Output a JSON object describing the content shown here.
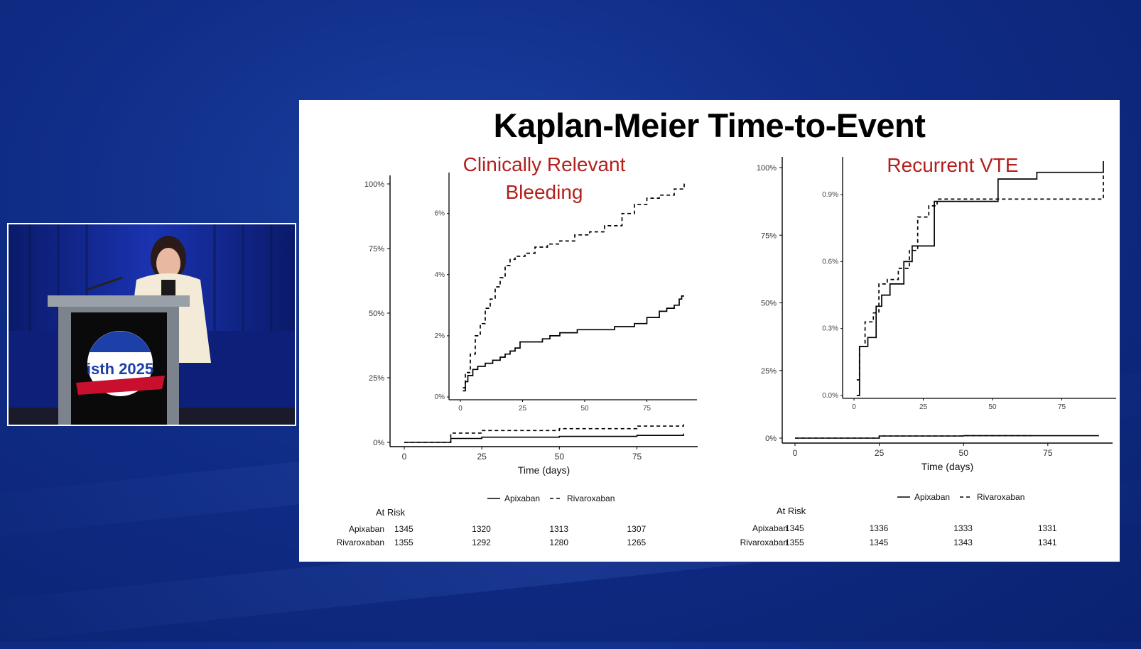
{
  "slide": {
    "title": "Kaplan-Meier Time-to-Event"
  },
  "video": {
    "podium_logo_text": "isth 2025"
  },
  "colors": {
    "background": "#0f2c86",
    "subtitle_red": "#b3201c",
    "line": "#000000"
  },
  "chart_data": [
    {
      "type": "line",
      "title": "Clinically Relevant Bleeding",
      "xlabel": "Time (days)",
      "ylabel": "",
      "xlim": [
        0,
        90
      ],
      "ylim": [
        0,
        100
      ],
      "x_ticks": [
        "0",
        "25",
        "50",
        "75"
      ],
      "y_ticks": [
        "0%",
        "25%",
        "50%",
        "75%",
        "100%"
      ],
      "legend_position": "bottom",
      "series": [
        {
          "name": "Apixaban",
          "style": "solid",
          "x": [
            0,
            15,
            25,
            50,
            75,
            90
          ],
          "values": [
            0.0,
            1.5,
            2.0,
            2.3,
            2.7,
            3.4
          ]
        },
        {
          "name": "Rivaroxaban",
          "style": "dashed",
          "x": [
            0,
            15,
            25,
            50,
            75,
            90
          ],
          "values": [
            0.0,
            3.6,
            4.6,
            5.3,
            6.3,
            7.0
          ]
        }
      ],
      "inset": {
        "xlim": [
          0,
          90
        ],
        "ylim": [
          0,
          7.2
        ],
        "x_ticks": [
          "0",
          "25",
          "50",
          "75"
        ],
        "y_ticks": [
          "0%",
          "2%",
          "4%",
          "6%"
        ],
        "series": [
          {
            "name": "Apixaban",
            "style": "solid",
            "x": [
              1,
              2,
              3,
              5,
              7,
              10,
              13,
              16,
              18,
              20,
              22,
              24,
              33,
              36,
              40,
              47,
              55,
              62,
              70,
              75,
              80,
              83,
              86,
              88,
              89,
              90
            ],
            "values": [
              0.2,
              0.5,
              0.7,
              0.9,
              1.0,
              1.1,
              1.2,
              1.3,
              1.4,
              1.5,
              1.6,
              1.8,
              1.9,
              2.0,
              2.1,
              2.2,
              2.2,
              2.3,
              2.4,
              2.6,
              2.8,
              2.9,
              3.0,
              3.2,
              3.3,
              3.3
            ]
          },
          {
            "name": "Rivaroxaban",
            "style": "dashed",
            "x": [
              1,
              2,
              4,
              6,
              8,
              10,
              12,
              14,
              16,
              18,
              20,
              22,
              24,
              26,
              30,
              35,
              40,
              46,
              52,
              58,
              65,
              70,
              75,
              80,
              86,
              90
            ],
            "values": [
              0.3,
              0.8,
              1.4,
              2.0,
              2.4,
              2.9,
              3.2,
              3.6,
              3.9,
              4.3,
              4.5,
              4.6,
              4.6,
              4.7,
              4.9,
              5.0,
              5.1,
              5.3,
              5.4,
              5.6,
              6.0,
              6.3,
              6.5,
              6.6,
              6.8,
              7.0
            ]
          }
        ]
      },
      "at_risk": {
        "label": "At Risk",
        "times": [
          0,
          25,
          50,
          75
        ],
        "rows": [
          {
            "name": "Apixaban",
            "values": [
              1345,
              1320,
              1313,
              1307
            ]
          },
          {
            "name": "Rivaroxaban",
            "values": [
              1355,
              1292,
              1280,
              1265
            ]
          }
        ]
      }
    },
    {
      "type": "line",
      "title": "Recurrent VTE",
      "xlabel": "Time (days)",
      "ylabel": "",
      "xlim": [
        0,
        90
      ],
      "ylim": [
        0,
        100
      ],
      "x_ticks": [
        "0",
        "25",
        "50",
        "75"
      ],
      "y_ticks": [
        "0%",
        "25%",
        "50%",
        "75%",
        "100%"
      ],
      "legend_position": "bottom",
      "series": [
        {
          "name": "Apixaban",
          "style": "solid",
          "x": [
            0,
            25,
            50,
            90
          ],
          "values": [
            0.0,
            0.8,
            0.9,
            1.1
          ]
        },
        {
          "name": "Rivaroxaban",
          "style": "dashed",
          "x": [
            0,
            25,
            50,
            70
          ],
          "values": [
            0.0,
            0.8,
            0.9,
            0.95
          ]
        }
      ],
      "inset": {
        "xlim": [
          0,
          90
        ],
        "ylim": [
          0,
          1.05
        ],
        "x_ticks": [
          "0",
          "25",
          "50",
          "75"
        ],
        "y_ticks": [
          "0.0%",
          "0.3%",
          "0.6%",
          "0.9%"
        ],
        "series": [
          {
            "name": "Apixaban",
            "style": "solid",
            "x": [
              1,
              2,
              5,
              8,
              10,
              13,
              18,
              21,
              25,
              29,
              40,
              52,
              66,
              90
            ],
            "values": [
              0.0,
              0.22,
              0.26,
              0.4,
              0.45,
              0.5,
              0.6,
              0.67,
              0.67,
              0.87,
              0.87,
              0.97,
              1.0,
              1.05
            ]
          },
          {
            "name": "Rivaroxaban",
            "style": "dashed",
            "x": [
              1,
              2,
              4,
              7,
              9,
              12,
              16,
              20,
              23,
              27,
              30,
              50,
              70,
              90
            ],
            "values": [
              0.07,
              0.22,
              0.33,
              0.37,
              0.5,
              0.52,
              0.57,
              0.65,
              0.8,
              0.85,
              0.88,
              0.88,
              0.88,
              1.0
            ]
          }
        ]
      },
      "at_risk": {
        "label": "At Risk",
        "times": [
          0,
          25,
          50,
          75
        ],
        "rows": [
          {
            "name": "Apixaban",
            "values": [
              1345,
              1336,
              1333,
              1331
            ]
          },
          {
            "name": "Rivaroxaban",
            "values": [
              1355,
              1345,
              1343,
              1341
            ]
          }
        ]
      }
    }
  ]
}
